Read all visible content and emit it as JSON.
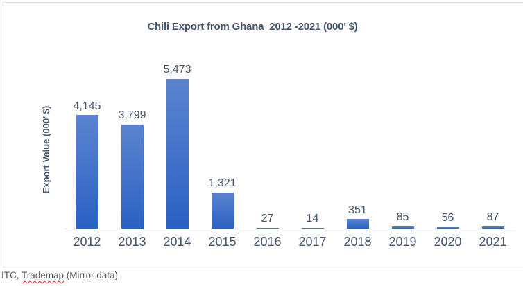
{
  "chart_data": {
    "type": "bar",
    "title": "Chili Export from Ghana  2012 -2021 (000' $)",
    "ylabel": "Export Value (000' $)",
    "xlabel": "",
    "categories": [
      "2012",
      "2013",
      "2014",
      "2015",
      "2016",
      "2017",
      "2018",
      "2019",
      "2020",
      "2021"
    ],
    "values": [
      4145,
      3799,
      5473,
      1321,
      27,
      14,
      351,
      85,
      56,
      87
    ],
    "value_labels": [
      "4,145",
      "3,799",
      "5,473",
      "1,321",
      "27",
      "14",
      "351",
      "85",
      "56",
      "87"
    ],
    "ylim": [
      0,
      5600
    ],
    "grid": false,
    "legend": "none",
    "data_labels_position": "above-bars"
  },
  "footer": {
    "prefix": "ITC, ",
    "misspelled_word": "Trademap",
    "suffix": " (Mirror data)"
  },
  "colors": {
    "bar_gradient_top": "#5B84CF",
    "bar_gradient_bottom": "#2A61C4",
    "text": "#44546A",
    "footer_text": "#595959",
    "frame_border": "#DCE0E5",
    "axis_line": "#D6DCE4",
    "spellcheck_underline": "#E02B20"
  }
}
